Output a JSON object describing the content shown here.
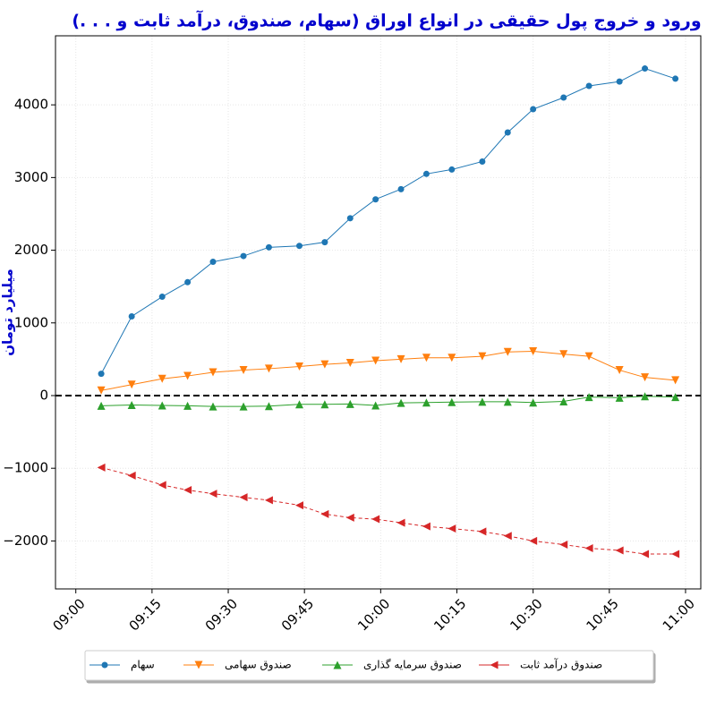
{
  "chart_data": {
    "type": "line",
    "title": "ورود و خروج پول حقیقی در انواع اوراق (سهام، صندوق، درآمد ثابت و . . .)",
    "y_label": "میلیارد تومان",
    "x": [
      "09:05",
      "09:11",
      "09:17",
      "09:22",
      "09:27",
      "09:33",
      "09:38",
      "09:44",
      "09:49",
      "09:54",
      "09:59",
      "10:04",
      "10:09",
      "10:14",
      "10:20",
      "10:25",
      "10:30",
      "10:36",
      "10:41",
      "10:47",
      "10:52",
      "10:58"
    ],
    "series": [
      {
        "name": "سهام",
        "color": "#1f77b4",
        "marker": "circle",
        "values": [
          300,
          1090,
          1360,
          1560,
          1840,
          1920,
          2040,
          2060,
          2110,
          2440,
          2700,
          2840,
          3050,
          3110,
          3220,
          3620,
          3940,
          4100,
          4260,
          4320,
          4500,
          4360
        ]
      },
      {
        "name": "صندوق سهامی",
        "color": "#ff7f0e",
        "marker": "triangle-down",
        "values": [
          70,
          150,
          230,
          270,
          320,
          350,
          370,
          400,
          430,
          450,
          480,
          500,
          520,
          520,
          540,
          600,
          610,
          570,
          540,
          350,
          250,
          210
        ]
      },
      {
        "name": "صندوق سرمایه گذاری",
        "color": "#2ca02c",
        "marker": "triangle-up",
        "values": [
          -140,
          -130,
          -135,
          -140,
          -150,
          -150,
          -145,
          -120,
          -120,
          -115,
          -135,
          -100,
          -95,
          -90,
          -85,
          -85,
          -95,
          -80,
          -20,
          -30,
          -10,
          -20
        ]
      },
      {
        "name": "صندوق درآمد ثابت",
        "color": "#d62728",
        "marker": "triangle-left",
        "values": [
          -990,
          -1100,
          -1230,
          -1300,
          -1350,
          -1400,
          -1440,
          -1510,
          -1630,
          -1680,
          -1700,
          -1750,
          -1800,
          -1830,
          -1870,
          -1930,
          -2000,
          -2050,
          -2100,
          -2130,
          -2180,
          -2180
        ]
      }
    ],
    "hline": 0,
    "xlim": [
      "08:56",
      "11:03"
    ],
    "xticks": [
      "09:00",
      "09:15",
      "09:30",
      "09:45",
      "10:00",
      "10:15",
      "10:30",
      "10:45",
      "11:00"
    ],
    "ylim": [
      -2660,
      4950
    ],
    "yticks": [
      {
        "value": -2000,
        "label": "−2000"
      },
      {
        "value": -1000,
        "label": "−1000"
      },
      0,
      1000,
      2000,
      3000,
      4000
    ],
    "grid": true,
    "legend": "bottom"
  }
}
